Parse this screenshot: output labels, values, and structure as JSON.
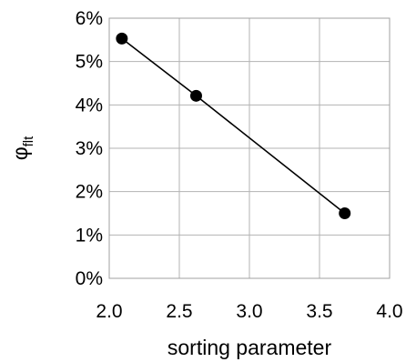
{
  "chart_data": {
    "type": "line",
    "xlabel": "sorting parameter",
    "ylabel_main": "φ",
    "ylabel_sub": "flt",
    "xlim": [
      2.0,
      4.0
    ],
    "ylim": [
      0,
      0.06
    ],
    "x_ticks": [
      2.0,
      2.5,
      3.0,
      3.5,
      4.0
    ],
    "x_tick_labels": [
      "2.0",
      "2.5",
      "3.0",
      "3.5",
      "4.0"
    ],
    "y_ticks": [
      0,
      0.01,
      0.02,
      0.03,
      0.04,
      0.05,
      0.06
    ],
    "y_tick_labels": [
      "0%",
      "1%",
      "2%",
      "3%",
      "4%",
      "5%",
      "6%"
    ],
    "grid": true,
    "series": [
      {
        "x": [
          2.09,
          2.62,
          3.68
        ],
        "y": [
          0.0553,
          0.0421,
          0.015
        ],
        "color": "#000000",
        "marker": "circle"
      }
    ]
  }
}
